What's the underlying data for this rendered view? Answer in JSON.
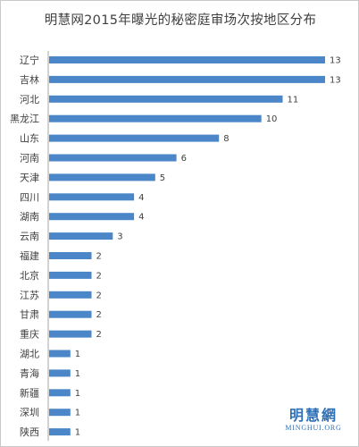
{
  "chart_data": {
    "type": "bar",
    "orientation": "horizontal",
    "title": "明慧网2015年曝光的秘密庭审场次按地区分布",
    "categories": [
      "辽宁",
      "吉林",
      "河北",
      "黑龙江",
      "山东",
      "河南",
      "天津",
      "四川",
      "湖南",
      "云南",
      "福建",
      "北京",
      "江苏",
      "甘肃",
      "重庆",
      "湖北",
      "青海",
      "新疆",
      "深圳",
      "陕西"
    ],
    "values": [
      13,
      13,
      11,
      10,
      8,
      6,
      5,
      4,
      4,
      3,
      2,
      2,
      2,
      2,
      2,
      1,
      1,
      1,
      1,
      1
    ],
    "xlim": [
      0,
      13
    ],
    "grid": false,
    "legend": "none",
    "data_labels": true,
    "bar_color": "#4a86c8"
  },
  "watermark": {
    "cn": "明慧網",
    "en": "MINGHUI.ORG"
  }
}
